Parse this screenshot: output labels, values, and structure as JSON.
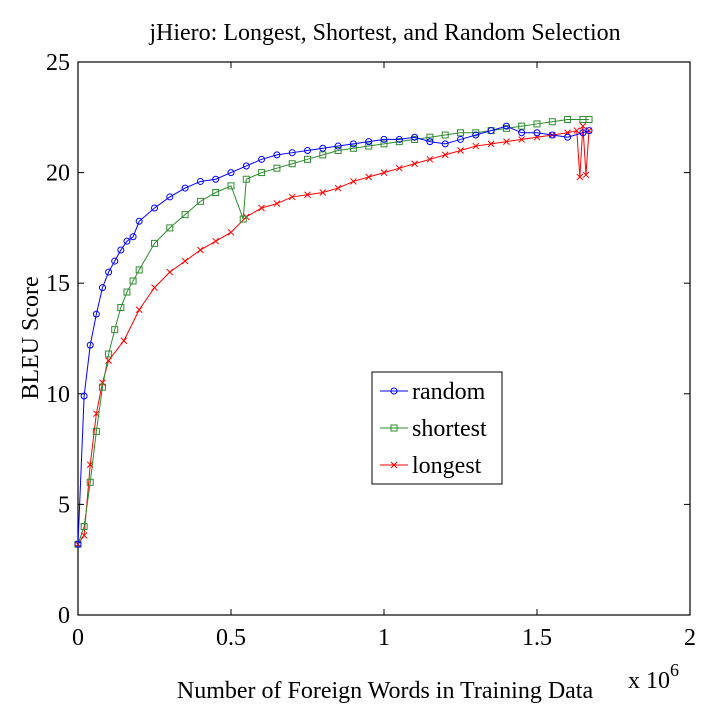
{
  "chart_data": {
    "type": "line",
    "title": "jHiero: Longest, Shortest, and Random Selection",
    "xlabel": "Number of Foreign Words in Training Data",
    "ylabel": "BLEU Score",
    "x_multiplier_label": "x 10",
    "x_multiplier_exp": "6",
    "xlim": [
      0,
      2
    ],
    "ylim": [
      0,
      25
    ],
    "x_ticks": [
      0,
      0.5,
      1,
      1.5,
      2
    ],
    "x_tick_labels": [
      "0",
      "0.5",
      "1",
      "1.5",
      "2"
    ],
    "y_ticks": [
      0,
      5,
      10,
      15,
      20,
      25
    ],
    "y_tick_labels": [
      "0",
      "5",
      "10",
      "15",
      "20",
      "25"
    ],
    "grid": false,
    "legend_position": "center-right",
    "series": [
      {
        "name": "random",
        "color": "#0000ff",
        "marker": "circle",
        "x": [
          0.0,
          0.02,
          0.04,
          0.06,
          0.08,
          0.1,
          0.12,
          0.14,
          0.16,
          0.18,
          0.2,
          0.25,
          0.3,
          0.35,
          0.4,
          0.45,
          0.5,
          0.55,
          0.6,
          0.65,
          0.7,
          0.75,
          0.8,
          0.85,
          0.9,
          0.95,
          1.0,
          1.05,
          1.1,
          1.15,
          1.2,
          1.25,
          1.3,
          1.35,
          1.4,
          1.45,
          1.5,
          1.55,
          1.6,
          1.65,
          1.67
        ],
        "y": [
          3.2,
          9.9,
          12.2,
          13.6,
          14.8,
          15.5,
          16.0,
          16.5,
          16.9,
          17.1,
          17.8,
          18.4,
          18.9,
          19.3,
          19.6,
          19.7,
          20.0,
          20.3,
          20.6,
          20.8,
          20.9,
          21.0,
          21.1,
          21.2,
          21.3,
          21.4,
          21.5,
          21.5,
          21.6,
          21.4,
          21.3,
          21.5,
          21.7,
          21.9,
          22.1,
          21.8,
          21.8,
          21.7,
          21.6,
          21.8,
          21.9
        ]
      },
      {
        "name": "shortest",
        "color": "#2e8b2e",
        "marker": "square",
        "x": [
          0.0,
          0.02,
          0.04,
          0.06,
          0.08,
          0.1,
          0.12,
          0.14,
          0.16,
          0.18,
          0.2,
          0.25,
          0.3,
          0.35,
          0.4,
          0.45,
          0.5,
          0.54,
          0.55,
          0.6,
          0.65,
          0.7,
          0.75,
          0.8,
          0.85,
          0.9,
          0.95,
          1.0,
          1.05,
          1.1,
          1.15,
          1.2,
          1.25,
          1.3,
          1.35,
          1.4,
          1.45,
          1.5,
          1.55,
          1.6,
          1.65,
          1.67
        ],
        "y": [
          3.2,
          4.0,
          6.0,
          8.3,
          10.3,
          11.8,
          12.9,
          13.9,
          14.6,
          15.1,
          15.6,
          16.8,
          17.5,
          18.1,
          18.7,
          19.1,
          19.4,
          17.9,
          19.7,
          20.0,
          20.2,
          20.4,
          20.6,
          20.8,
          21.0,
          21.1,
          21.2,
          21.3,
          21.4,
          21.5,
          21.6,
          21.7,
          21.8,
          21.8,
          21.9,
          22.0,
          22.1,
          22.2,
          22.3,
          22.4,
          22.4,
          22.4
        ]
      },
      {
        "name": "longest",
        "color": "#ff0000",
        "marker": "x",
        "x": [
          0.0,
          0.02,
          0.04,
          0.06,
          0.08,
          0.1,
          0.15,
          0.2,
          0.25,
          0.3,
          0.35,
          0.4,
          0.45,
          0.5,
          0.55,
          0.6,
          0.65,
          0.7,
          0.75,
          0.8,
          0.85,
          0.9,
          0.95,
          1.0,
          1.05,
          1.1,
          1.15,
          1.2,
          1.25,
          1.3,
          1.35,
          1.4,
          1.45,
          1.5,
          1.55,
          1.6,
          1.63,
          1.64,
          1.65,
          1.66,
          1.67
        ],
        "y": [
          3.2,
          3.6,
          6.8,
          9.1,
          10.5,
          11.5,
          12.4,
          13.8,
          14.8,
          15.5,
          16.0,
          16.5,
          16.9,
          17.3,
          18.0,
          18.4,
          18.6,
          18.9,
          19.0,
          19.1,
          19.3,
          19.6,
          19.8,
          20.0,
          20.2,
          20.4,
          20.6,
          20.8,
          21.0,
          21.2,
          21.3,
          21.4,
          21.5,
          21.6,
          21.7,
          21.8,
          21.9,
          19.8,
          22.1,
          19.9,
          21.9
        ]
      }
    ]
  }
}
